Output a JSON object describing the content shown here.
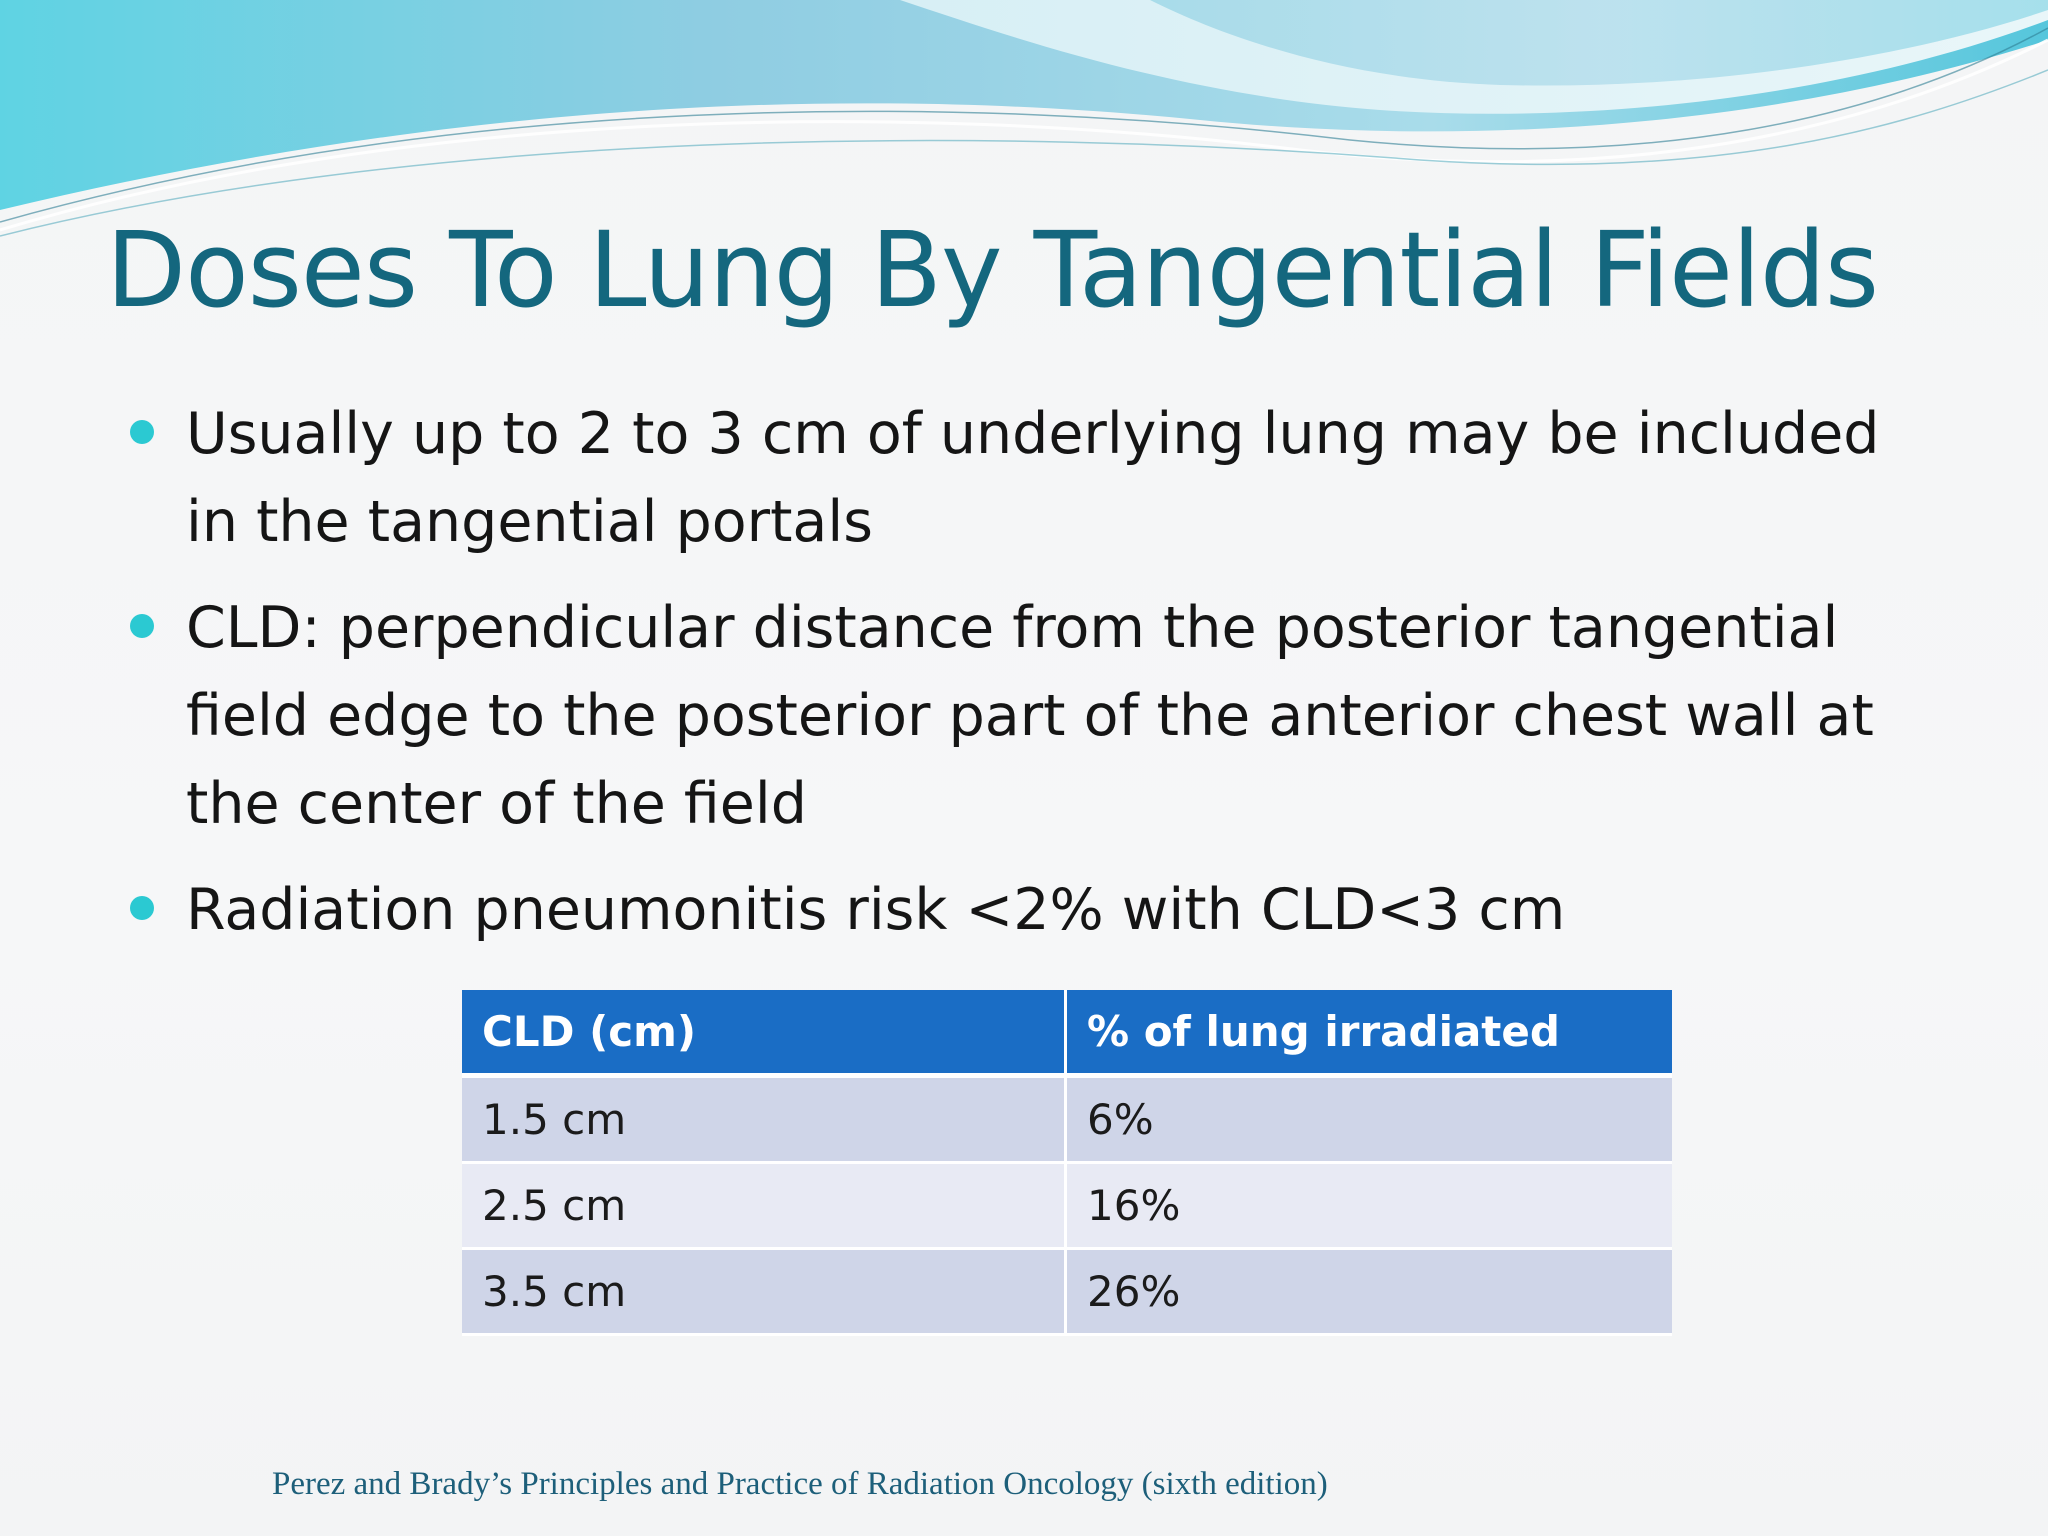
{
  "slide": {
    "title": "Doses To Lung By Tangential Fields",
    "bullets": [
      "Usually up to 2 to 3 cm of underlying lung may be included in the tangential portals",
      "CLD: perpendicular distance from the posterior tangential field edge to the posterior part of the anterior chest wall at the center of the field",
      "Radiation pneumonitis risk <2% with CLD<3 cm"
    ],
    "table": {
      "headers": [
        "CLD (cm)",
        "% of lung irradiated"
      ],
      "rows": [
        [
          "1.5 cm",
          "6%"
        ],
        [
          "2.5 cm",
          "16%"
        ],
        [
          "3.5 cm",
          "26%"
        ]
      ]
    },
    "citation": "Perez and Brady’s Principles and Practice of Radiation Oncology (sixth edition)"
  },
  "colors": {
    "title": "#14677e",
    "bullet_dot": "#2bc9d2",
    "table_header": "#1a6dc5",
    "table_row_odd": "#cfd5e8",
    "table_row_even": "#e8eaf4",
    "citation": "#1d5f7a"
  }
}
